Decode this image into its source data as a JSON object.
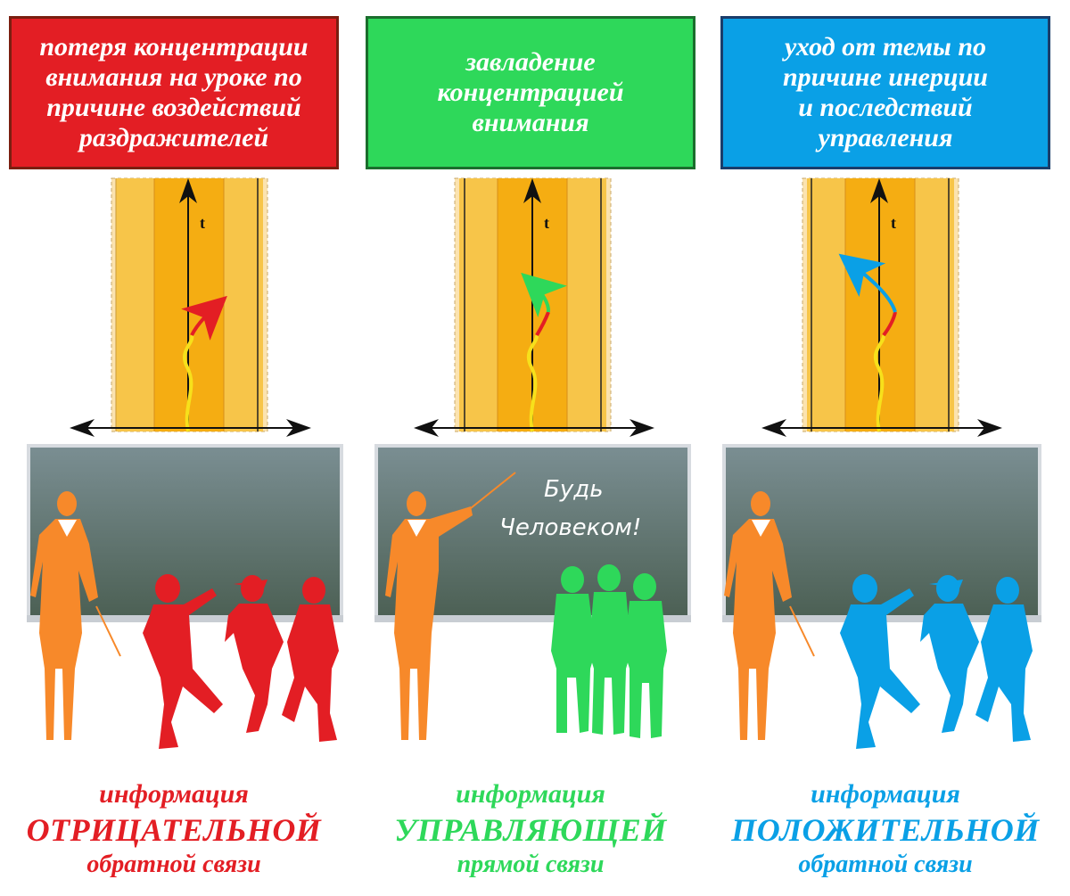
{
  "colors": {
    "red": "#e31e24",
    "green": "#2ed85a",
    "blue": "#0aa0e6",
    "orange": "#f7892a",
    "band_outer": "#f7c549",
    "band_inner": "#f5ad12",
    "board_top": "#6f8488",
    "board_bottom": "#4f6356"
  },
  "panels": [
    {
      "key": "negative",
      "header_lines": [
        "потеря концентрации",
        "внимания на уроке по",
        "причине воздействий",
        "раздражителей"
      ],
      "axis_label": "t",
      "board_text": [],
      "caption": {
        "line1": "информация",
        "line2": "ОТРИЦАТЕЛЬНОЙ",
        "line3": "обратной связи"
      },
      "color": "#e31e24"
    },
    {
      "key": "control",
      "header_lines": [
        "завладение",
        "концентрацией",
        "внимания"
      ],
      "axis_label": "t",
      "board_text": [
        "Будь",
        "Человеком!"
      ],
      "caption": {
        "line1": "информация",
        "line2": "УПРАВЛЯЮЩЕЙ",
        "line3": "прямой связи"
      },
      "color": "#2ed85a"
    },
    {
      "key": "positive",
      "header_lines": [
        "уход от темы по",
        "причине инерции",
        "и последствий",
        "управления"
      ],
      "axis_label": "t",
      "board_text": [],
      "caption": {
        "line1": "информация",
        "line2": "ПОЛОЖИТЕЛЬНОЙ",
        "line3": "обратной связи"
      },
      "color": "#0aa0e6"
    }
  ]
}
